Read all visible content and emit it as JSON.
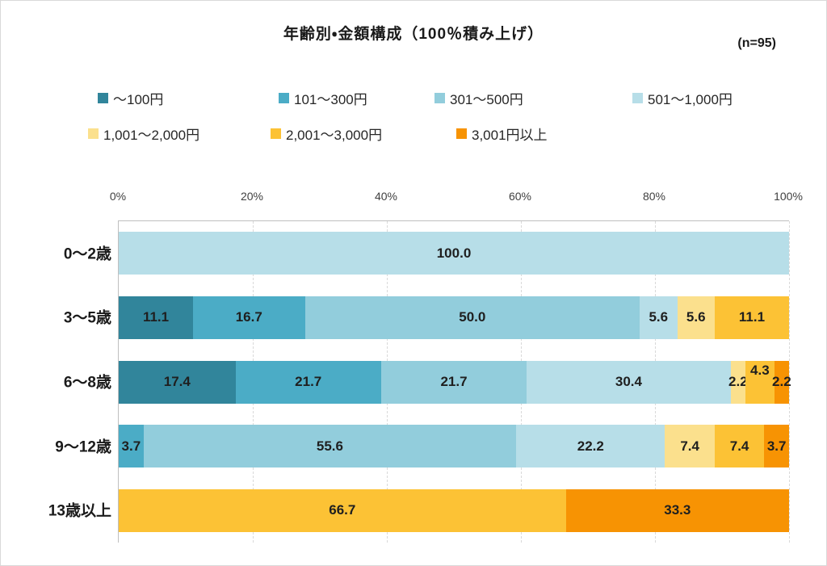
{
  "header": {
    "title": "年齢別・金額構成（100％積み上げ）",
    "sample_label": "(n=95)"
  },
  "chart_data": {
    "type": "bar",
    "variant": "horizontal-stacked-100pct",
    "title": "年齢別・金額構成（100％積み上げ）",
    "sample_label": "(n=95)",
    "categories": [
      "0～2歳",
      "3～5歳",
      "6～8歳",
      "9～12歳",
      "13歳以上"
    ],
    "series": [
      {
        "name": "～100円",
        "color": "#31859B",
        "values": [
          0,
          11.1,
          17.4,
          0,
          0
        ]
      },
      {
        "name": "101～300円",
        "color": "#4BACC6",
        "values": [
          0,
          16.7,
          21.7,
          3.7,
          0
        ]
      },
      {
        "name": "301～500円",
        "color": "#92CDDC",
        "values": [
          0,
          50.0,
          21.7,
          55.6,
          0
        ]
      },
      {
        "name": "501～1,000円",
        "color": "#B7DEE8",
        "values": [
          100.0,
          5.6,
          30.4,
          22.2,
          0
        ]
      },
      {
        "name": "1,001～2,000円",
        "color": "#FBE08D",
        "values": [
          0,
          5.6,
          2.2,
          7.4,
          0
        ]
      },
      {
        "name": "2,001～3,000円",
        "color": "#FCC235",
        "values": [
          0,
          11.1,
          4.3,
          7.4,
          66.7
        ]
      },
      {
        "name": "3,001円以上",
        "color": "#F79303",
        "values": [
          0,
          0,
          2.2,
          3.7,
          33.3
        ]
      }
    ],
    "x_ticks": [
      "0%",
      "20%",
      "40%",
      "60%",
      "80%",
      "100%"
    ],
    "xlim": [
      0,
      100
    ],
    "value_decimals": 1,
    "grid": true,
    "legend_position": "top",
    "legend_rows": [
      [
        0,
        1,
        2,
        3
      ],
      [
        4,
        5,
        6
      ]
    ]
  }
}
